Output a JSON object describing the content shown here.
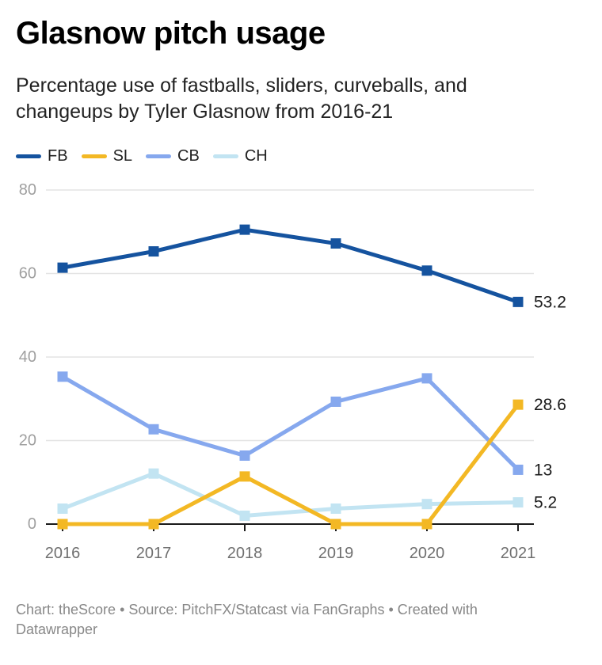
{
  "header": {
    "title": "Glasnow pitch usage",
    "subtitle": "Percentage use of fastballs, sliders, curveballs, and changeups by Tyler Glasnow from 2016-21"
  },
  "footer": {
    "text": "Chart: theScore • Source: PitchFX/Statcast via FanGraphs • Created with Datawrapper"
  },
  "chart_data": {
    "type": "line",
    "title": "Glasnow pitch usage",
    "subtitle": "Percentage use of fastballs, sliders, curveballs, and changeups by Tyler Glasnow from 2016-21",
    "xlabel": "",
    "ylabel": "",
    "x": [
      "2016",
      "2017",
      "2018",
      "2019",
      "2020",
      "2021"
    ],
    "ylim": [
      0,
      80
    ],
    "yticks": [
      0,
      20,
      40,
      60,
      80
    ],
    "grid": true,
    "legend": "top-left",
    "series": [
      {
        "name": "FB",
        "color": "#15539f",
        "values": [
          61.4,
          65.3,
          70.5,
          67.2,
          60.7,
          53.2
        ],
        "end_label": "53.2"
      },
      {
        "name": "SL",
        "color": "#f3b824",
        "values": [
          0,
          0,
          11.4,
          0,
          0,
          28.6
        ],
        "end_label": "28.6"
      },
      {
        "name": "CB",
        "color": "#86a8ee",
        "values": [
          35.3,
          22.7,
          16.4,
          29.3,
          34.9,
          13.0
        ],
        "end_label": "13"
      },
      {
        "name": "CH",
        "color": "#c2e4f2",
        "values": [
          3.7,
          12.1,
          2.0,
          3.7,
          4.8,
          5.2
        ],
        "end_label": "5.2"
      }
    ]
  }
}
